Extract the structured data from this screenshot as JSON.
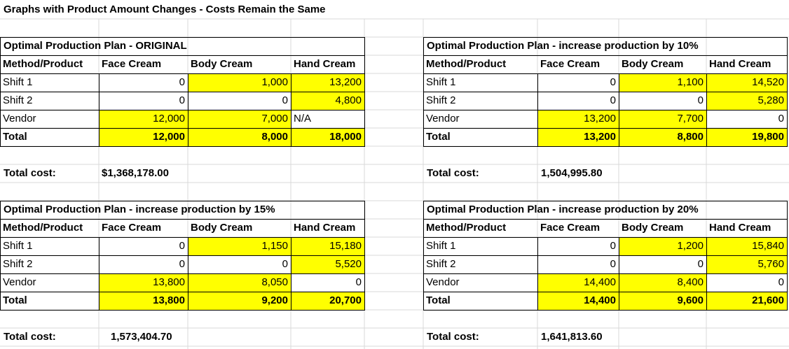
{
  "sheet_title": "Graphs with Product Amount Changes - Costs Remain the Same",
  "tables": [
    {
      "title": "Optimal Production Plan - ORIGINAL",
      "headers": [
        "Method/Product",
        "Face Cream",
        "Body Cream",
        "Hand Cream"
      ],
      "rows": [
        [
          "Shift 1",
          "0",
          "1,000",
          "13,200"
        ],
        [
          "Shift 2",
          "0",
          "0",
          "4,800"
        ],
        [
          "Vendor",
          "12,000",
          "7,000",
          "N/A"
        ],
        [
          "Total",
          "12,000",
          "8,000",
          "18,000"
        ]
      ],
      "cost_label": "Total cost:",
      "cost_value": "$1,368,178.00"
    },
    {
      "title": "Optimal Production Plan - increase production by 10%",
      "headers": [
        "Method/Product",
        "Face Cream",
        "Body Cream",
        "Hand Cream"
      ],
      "rows": [
        [
          "Shift 1",
          "0",
          "1,100",
          "14,520"
        ],
        [
          "Shift 2",
          "0",
          "0",
          "5,280"
        ],
        [
          "Vendor",
          "13,200",
          "7,700",
          "0"
        ],
        [
          "Total",
          "13,200",
          "8,800",
          "19,800"
        ]
      ],
      "cost_label": "Total cost:",
      "cost_value": "1,504,995.80"
    },
    {
      "title": "Optimal Production Plan - increase production by 15%",
      "headers": [
        "Method/Product",
        "Face Cream",
        "Body Cream",
        "Hand Cream"
      ],
      "rows": [
        [
          "Shift 1",
          "0",
          "1,150",
          "15,180"
        ],
        [
          "Shift 2",
          "0",
          "0",
          "5,520"
        ],
        [
          "Vendor",
          "13,800",
          "8,050",
          "0"
        ],
        [
          "Total",
          "13,800",
          "9,200",
          "20,700"
        ]
      ],
      "cost_label": "Total cost:",
      "cost_value": "1,573,404.70"
    },
    {
      "title": "Optimal Production Plan - increase production by 20%",
      "headers": [
        "Method/Product",
        "Face Cream",
        "Body Cream",
        "Hand Cream"
      ],
      "rows": [
        [
          "Shift 1",
          "0",
          "1,200",
          "15,840"
        ],
        [
          "Shift 2",
          "0",
          "0",
          "5,760"
        ],
        [
          "Vendor",
          "14,400",
          "8,400",
          "0"
        ],
        [
          "Total",
          "14,400",
          "9,600",
          "21,600"
        ]
      ],
      "cost_label": "Total cost:",
      "cost_value": "1,641,813.60"
    }
  ],
  "highlight_color": "#ffff00"
}
